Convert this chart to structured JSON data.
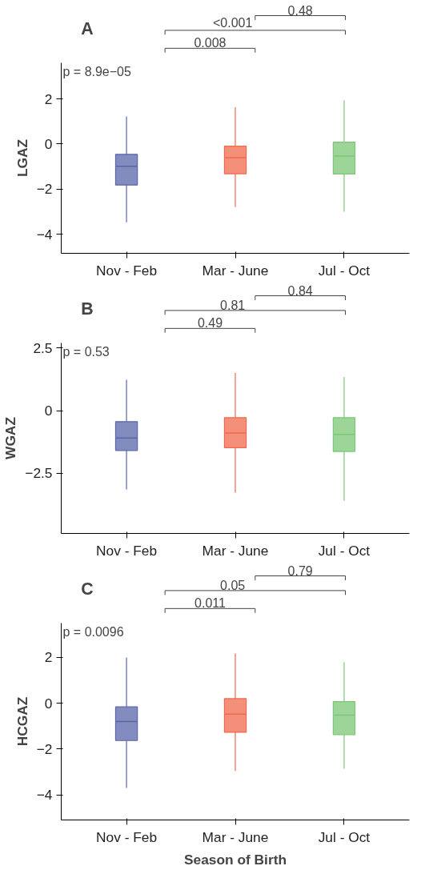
{
  "chart_data": [
    {
      "type": "box",
      "ylabel": "LGAZ",
      "categories": [
        "Nov - Feb",
        "Mar - June",
        "Jul - Oct"
      ],
      "colors": [
        "#5a66a8",
        "#f0694c",
        "#7cc777"
      ],
      "boxes": [
        {
          "low": -3.47,
          "q1": -1.82,
          "median": -0.99,
          "q3": -0.46,
          "high": 1.22
        },
        {
          "low": -2.8,
          "q1": -1.32,
          "median": -0.61,
          "q3": -0.1,
          "high": 1.63
        },
        {
          "low": -3.0,
          "q1": -1.33,
          "median": -0.54,
          "q3": 0.08,
          "high": 1.94
        }
      ],
      "ylim": [
        -4.85,
        3.6
      ],
      "yticks": [
        {
          "value": -4,
          "label": "−4"
        },
        {
          "value": -2,
          "label": "−2"
        },
        0,
        2
      ],
      "grid": false,
      "annotations": [
        "A",
        "p = 8.9e−05",
        "0.008",
        "<0.001",
        "0.48"
      ]
    },
    {
      "type": "box",
      "ylabel": "WGAZ",
      "categories": [
        "Nov - Feb",
        "Mar - June",
        "Jul - Oct"
      ],
      "colors": [
        "#5a66a8",
        "#f0694c",
        "#7cc777"
      ],
      "boxes": [
        {
          "low": -3.14,
          "q1": -1.59,
          "median": -1.09,
          "q3": -0.44,
          "high": 1.23
        },
        {
          "low": -3.27,
          "q1": -1.48,
          "median": -0.89,
          "q3": -0.28,
          "high": 1.5
        },
        {
          "low": -3.6,
          "q1": -1.63,
          "median": -0.95,
          "q3": -0.28,
          "high": 1.34
        }
      ],
      "ylim": [
        -4.9,
        2.7
      ],
      "yticks": [
        {
          "value": -2.5,
          "label": "−2.5"
        },
        0,
        2.5
      ],
      "grid": false,
      "annotations": [
        "B",
        "p = 0.53",
        "0.49",
        "0.81",
        "0.84"
      ]
    },
    {
      "type": "box",
      "ylabel": "HCGAZ",
      "xlabel": "Season of Birth",
      "categories": [
        "Nov - Feb",
        "Mar - June",
        "Jul - Oct"
      ],
      "colors": [
        "#5a66a8",
        "#f0694c",
        "#7cc777"
      ],
      "boxes": [
        {
          "low": -3.7,
          "q1": -1.63,
          "median": -0.8,
          "q3": -0.16,
          "high": 2.0
        },
        {
          "low": -2.96,
          "q1": -1.27,
          "median": -0.48,
          "q3": 0.2,
          "high": 2.17
        },
        {
          "low": -2.86,
          "q1": -1.37,
          "median": -0.52,
          "q3": 0.07,
          "high": 1.8
        }
      ],
      "ylim": [
        -5.1,
        3.5
      ],
      "yticks": [
        {
          "value": -4,
          "label": "−4"
        },
        {
          "value": -2,
          "label": "−2"
        },
        0,
        2
      ],
      "grid": false,
      "annotations": [
        "C",
        "p = 0.0096",
        "0.011",
        "0.05",
        "0.79"
      ]
    }
  ]
}
